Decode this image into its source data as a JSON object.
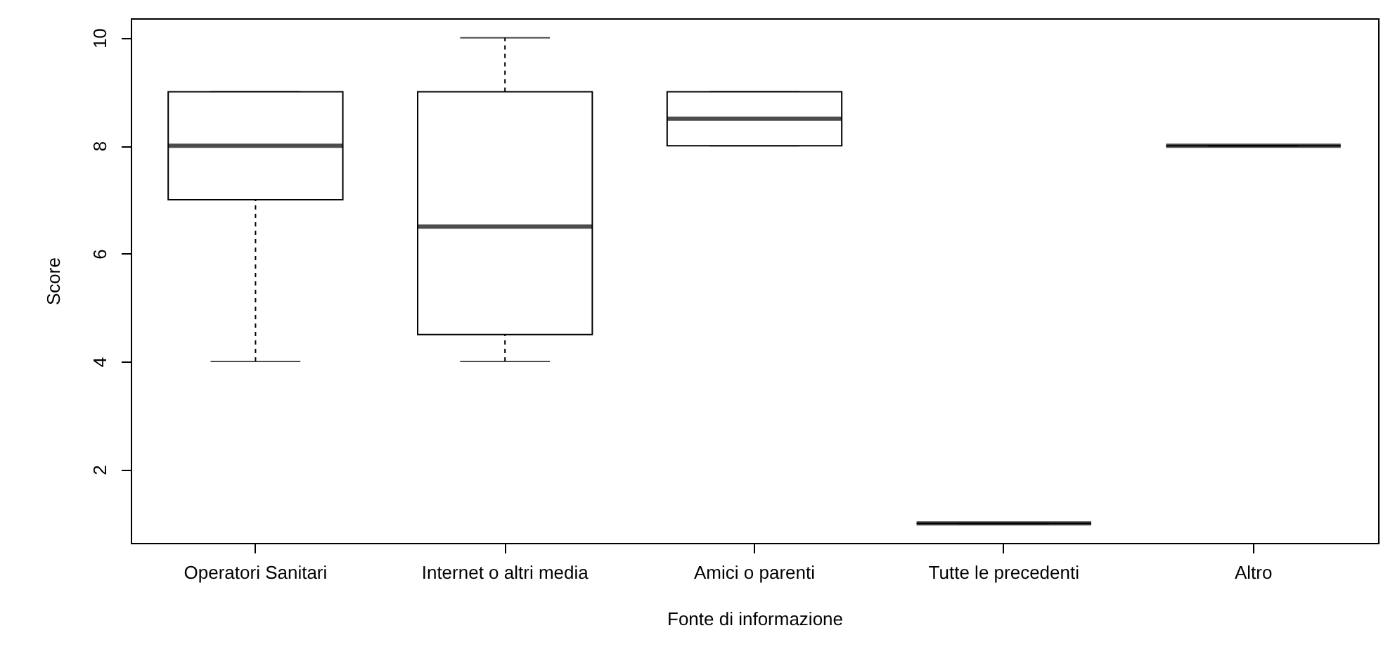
{
  "chart_data": {
    "type": "box",
    "xlabel": "Fonte di informazione",
    "ylabel": "Score",
    "categories": [
      "Operatori Sanitari",
      "Internet o altri media",
      "Amici o parenti",
      "Tutte le precedenti",
      "Altro"
    ],
    "boxes": [
      {
        "low": 4,
        "q1": 7,
        "median": 8,
        "q3": 9,
        "high": 9
      },
      {
        "low": 4,
        "q1": 4.5,
        "median": 6.5,
        "q3": 9,
        "high": 10
      },
      {
        "low": 8,
        "q1": 8,
        "median": 8.5,
        "q3": 9,
        "high": 9
      },
      {
        "low": 1,
        "q1": 1,
        "median": 1,
        "q3": 1,
        "high": 1
      },
      {
        "low": 8,
        "q1": 8,
        "median": 8,
        "q3": 8,
        "high": 8
      }
    ],
    "ylim": [
      0.64,
      10.36
    ],
    "yticks": [
      2,
      4,
      6,
      8,
      10
    ]
  }
}
